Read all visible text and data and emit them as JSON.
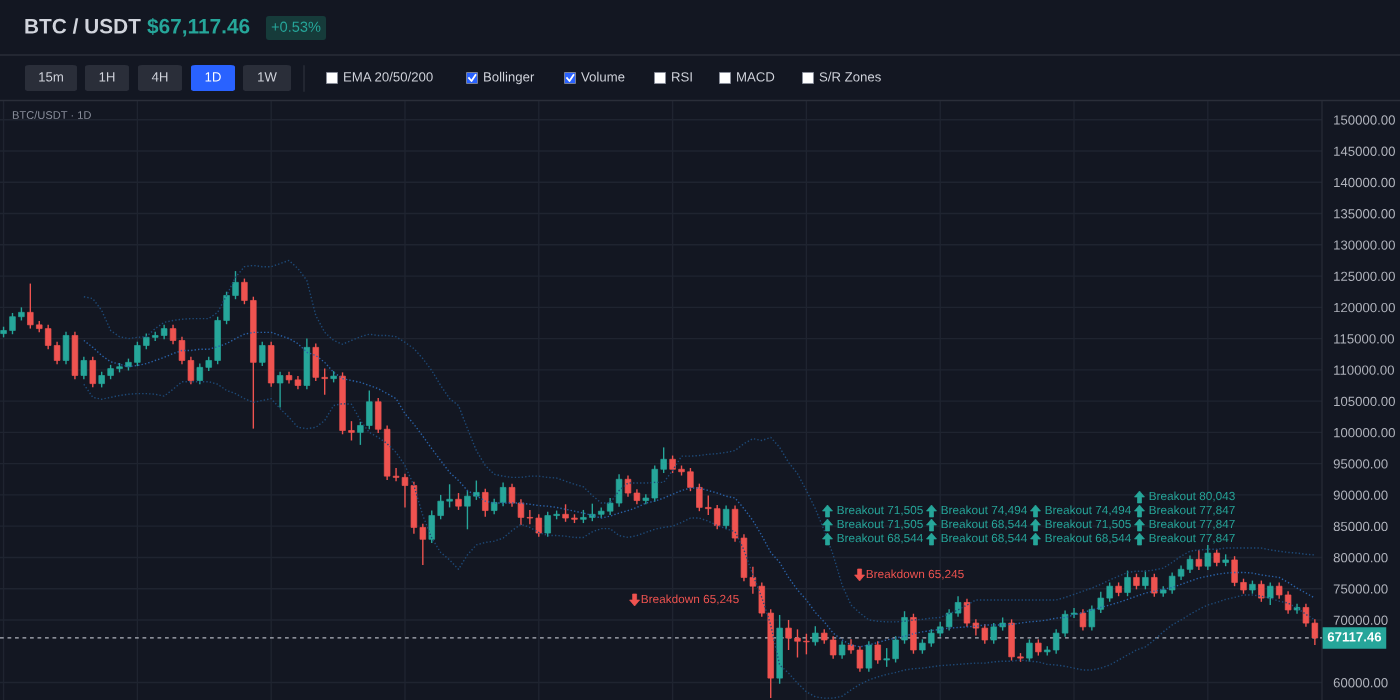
{
  "chart_data": {
    "type": "candlestick",
    "title": "BTC / USDT",
    "subtitle": "$67,117.46",
    "annotations": [
      "+0.53%",
      "15m",
      "1H",
      "4H",
      "1D",
      "1W",
      "EMA 20/50/200",
      "Bollinger",
      "Volume",
      "RSI",
      "MACD",
      "S/R Zones",
      "BTC/USDT · 1D",
      "Breakdown 65,245",
      "Breakdown 65,245",
      "Breakout 68,544",
      "Breakout 68,544",
      "Breakout 71,505",
      "Breakout 68,544",
      "Breakout 71,505",
      "Breakout 74,494",
      "Breakout 68,544",
      "Breakout 71,505",
      "Breakout 74,494",
      "Breakout 77,847",
      "Breakout 77,847",
      "Breakout 77,847",
      "Breakout 80,043"
    ],
    "categories": [
      null,
      null,
      null,
      null,
      null,
      null,
      null,
      null,
      null,
      null,
      null,
      null,
      null,
      null,
      null,
      null,
      null,
      null,
      null,
      null,
      null,
      null,
      null,
      null,
      null,
      null,
      null,
      null,
      null,
      null,
      null,
      null,
      null,
      null,
      null,
      null,
      null,
      null,
      null,
      null,
      null,
      null,
      null,
      null,
      null,
      null,
      null,
      null,
      null,
      null,
      null,
      null,
      null,
      null,
      null,
      null,
      null,
      null,
      null,
      null,
      null,
      null,
      null,
      null,
      null,
      null,
      null,
      null,
      null,
      null,
      null,
      null,
      null,
      null,
      null,
      null,
      null,
      null,
      null,
      null,
      null,
      null,
      null,
      null,
      null,
      null,
      null,
      null,
      null,
      null,
      null,
      null,
      null,
      null,
      null,
      null,
      null,
      null,
      null,
      null,
      null,
      null,
      null,
      null,
      null,
      null,
      null,
      null,
      null,
      null,
      null,
      null,
      null,
      null,
      null,
      null,
      null,
      null,
      null,
      null,
      null,
      null,
      null,
      null,
      null,
      null,
      null,
      null,
      null,
      null,
      null,
      null,
      null,
      null,
      null,
      null,
      null,
      null,
      null,
      null,
      null,
      null,
      null,
      null,
      null,
      null,
      null,
      null
    ],
    "ohlc": [
      [
        115800,
        116900,
        115200,
        116300
      ],
      [
        116300,
        119100,
        115700,
        118500
      ],
      [
        118500,
        120000,
        117900,
        119200
      ],
      [
        119200,
        123800,
        116600,
        117200
      ],
      [
        117200,
        117800,
        116000,
        116600
      ],
      [
        116600,
        117200,
        113300,
        113900
      ],
      [
        113900,
        114500,
        110900,
        111500
      ],
      [
        111500,
        116100,
        110900,
        115500
      ],
      [
        115500,
        116100,
        108500,
        109100
      ],
      [
        109100,
        112100,
        108500,
        111500
      ],
      [
        111500,
        112100,
        107200,
        107800
      ],
      [
        107800,
        109700,
        107200,
        109100
      ],
      [
        109100,
        110800,
        108500,
        110200
      ],
      [
        110200,
        111100,
        109600,
        110500
      ],
      [
        110500,
        111800,
        109900,
        111200
      ],
      [
        111200,
        114500,
        110600,
        113900
      ],
      [
        113900,
        115800,
        113300,
        115200
      ],
      [
        115200,
        116100,
        114600,
        115500
      ],
      [
        115500,
        117200,
        114900,
        116600
      ],
      [
        116600,
        117200,
        114100,
        114700
      ],
      [
        114700,
        115300,
        110900,
        111500
      ],
      [
        111500,
        112100,
        107700,
        108300
      ],
      [
        108300,
        111000,
        107700,
        110400
      ],
      [
        110400,
        112100,
        109800,
        111500
      ],
      [
        111500,
        118500,
        110900,
        117900
      ],
      [
        117900,
        122500,
        117300,
        121900
      ],
      [
        121900,
        125800,
        121300,
        124000
      ],
      [
        124000,
        124600,
        120500,
        121100
      ],
      [
        121100,
        121700,
        100600,
        111200
      ],
      [
        111200,
        114500,
        110600,
        113900
      ],
      [
        113900,
        114500,
        107300,
        107900
      ],
      [
        107900,
        109700,
        104000,
        109100
      ],
      [
        109100,
        109700,
        107800,
        108400
      ],
      [
        108400,
        109000,
        106900,
        107500
      ],
      [
        107500,
        115000,
        106900,
        113600
      ],
      [
        113600,
        114200,
        108200,
        108800
      ],
      [
        108800,
        110200,
        106000,
        108600
      ],
      [
        108600,
        109800,
        108000,
        109000
      ],
      [
        109000,
        109600,
        99700,
        100300
      ],
      [
        100300,
        101800,
        98700,
        100000
      ],
      [
        100000,
        101700,
        98000,
        101100
      ],
      [
        101100,
        106700,
        100500,
        104900
      ],
      [
        104900,
        105500,
        99900,
        100500
      ],
      [
        100500,
        101100,
        92400,
        93000
      ],
      [
        93000,
        94300,
        92200,
        92800
      ],
      [
        92800,
        93400,
        88000,
        91500
      ],
      [
        91500,
        92100,
        83800,
        84800
      ],
      [
        84800,
        85400,
        78800,
        82900
      ],
      [
        82900,
        87500,
        82300,
        86700
      ],
      [
        86700,
        90000,
        86100,
        89000
      ],
      [
        89000,
        91700,
        88000,
        89300
      ],
      [
        89300,
        90300,
        87600,
        88200
      ],
      [
        88200,
        90700,
        84500,
        89800
      ],
      [
        89800,
        92300,
        89200,
        90400
      ],
      [
        90400,
        91000,
        86500,
        87500
      ],
      [
        87500,
        89400,
        86900,
        88800
      ],
      [
        88800,
        92000,
        88200,
        91200
      ],
      [
        91200,
        91800,
        88100,
        88700
      ],
      [
        88700,
        89300,
        85200,
        86400
      ],
      [
        86400,
        87600,
        85300,
        86300
      ],
      [
        86300,
        86900,
        83300,
        83900
      ],
      [
        83900,
        87300,
        83300,
        86700
      ],
      [
        86700,
        87500,
        86100,
        86900
      ],
      [
        86900,
        88500,
        85700,
        86300
      ],
      [
        86300,
        86900,
        85500,
        86100
      ],
      [
        86100,
        87600,
        85500,
        86400
      ],
      [
        86400,
        88600,
        85800,
        86900
      ],
      [
        86900,
        88000,
        86300,
        87400
      ],
      [
        87400,
        89500,
        86800,
        88700
      ],
      [
        88700,
        93300,
        88100,
        92500
      ],
      [
        92500,
        93100,
        89700,
        90300
      ],
      [
        90300,
        90900,
        88500,
        89100
      ],
      [
        89100,
        90100,
        88500,
        89500
      ],
      [
        89500,
        94700,
        88900,
        94100
      ],
      [
        94100,
        97600,
        93500,
        95700
      ],
      [
        95700,
        96300,
        93500,
        94100
      ],
      [
        94100,
        94700,
        93100,
        93700
      ],
      [
        93700,
        94300,
        90600,
        91200
      ],
      [
        91200,
        91800,
        87400,
        88000
      ],
      [
        88000,
        89900,
        86800,
        87800
      ],
      [
        87800,
        88400,
        84500,
        85100
      ],
      [
        85100,
        88300,
        84500,
        87700
      ],
      [
        87700,
        88300,
        82500,
        83100
      ],
      [
        83100,
        83700,
        76200,
        76800
      ],
      [
        76800,
        78500,
        74200,
        75400
      ],
      [
        75400,
        76000,
        70500,
        71100
      ],
      [
        71100,
        71700,
        57500,
        60700
      ],
      [
        60700,
        70800,
        59800,
        68700
      ],
      [
        68700,
        70000,
        65200,
        67100
      ],
      [
        67100,
        68500,
        64000,
        66600
      ],
      [
        66600,
        67800,
        64500,
        66500
      ],
      [
        66500,
        69000,
        65900,
        67900
      ],
      [
        67900,
        68500,
        66200,
        66800
      ],
      [
        66800,
        67400,
        63800,
        64400
      ],
      [
        64400,
        66600,
        63800,
        66000
      ],
      [
        66000,
        66900,
        64600,
        65200
      ],
      [
        65200,
        65800,
        61700,
        62300
      ],
      [
        62300,
        66600,
        61700,
        66000
      ],
      [
        66000,
        66600,
        63000,
        63600
      ],
      [
        63600,
        65500,
        62500,
        63800
      ],
      [
        63800,
        67400,
        63200,
        66800
      ],
      [
        66800,
        71400,
        66200,
        70400
      ],
      [
        70400,
        71000,
        64600,
        65200
      ],
      [
        65200,
        66900,
        64600,
        66300
      ],
      [
        66300,
        68500,
        65700,
        67900
      ],
      [
        67900,
        69700,
        67300,
        68900
      ],
      [
        68900,
        71700,
        68300,
        71100
      ],
      [
        71100,
        73800,
        70500,
        72800
      ],
      [
        72800,
        73400,
        68900,
        69500
      ],
      [
        69500,
        70100,
        67500,
        68700
      ],
      [
        68700,
        69300,
        66200,
        66800
      ],
      [
        66800,
        69500,
        66200,
        68900
      ],
      [
        68900,
        70400,
        68300,
        69500
      ],
      [
        69500,
        70100,
        63500,
        64100
      ],
      [
        64100,
        64700,
        63300,
        63900
      ],
      [
        63900,
        66900,
        63300,
        66300
      ],
      [
        66300,
        66900,
        64300,
        64900
      ],
      [
        64900,
        65800,
        64300,
        65200
      ],
      [
        65200,
        68500,
        64600,
        67900
      ],
      [
        67900,
        71500,
        67300,
        70900
      ],
      [
        70900,
        71900,
        70300,
        71100
      ],
      [
        71100,
        71700,
        68300,
        68900
      ],
      [
        68900,
        72300,
        68300,
        71700
      ],
      [
        71700,
        74500,
        71100,
        73500
      ],
      [
        73500,
        76000,
        72900,
        75400
      ],
      [
        75400,
        76000,
        73800,
        74400
      ],
      [
        74400,
        77900,
        73800,
        76800
      ],
      [
        76800,
        77400,
        74900,
        75500
      ],
      [
        75500,
        77900,
        74900,
        76800
      ],
      [
        76800,
        77400,
        73700,
        74300
      ],
      [
        74300,
        75400,
        73700,
        74800
      ],
      [
        74800,
        77600,
        74200,
        77000
      ],
      [
        77000,
        78700,
        76400,
        78100
      ],
      [
        78100,
        80300,
        77500,
        79700
      ],
      [
        79700,
        81200,
        78000,
        78600
      ],
      [
        78600,
        82000,
        78000,
        80700
      ],
      [
        80700,
        81300,
        78600,
        79200
      ],
      [
        79200,
        80500,
        78600,
        79600
      ],
      [
        79600,
        80200,
        75400,
        76000
      ],
      [
        76000,
        76600,
        74200,
        74800
      ],
      [
        74800,
        76300,
        74200,
        75700
      ],
      [
        75700,
        76300,
        72900,
        73500
      ],
      [
        73500,
        76000,
        72400,
        75400
      ],
      [
        75400,
        76000,
        73400,
        74000
      ],
      [
        74000,
        74600,
        71000,
        71600
      ],
      [
        71600,
        72600,
        71000,
        72000
      ],
      [
        72000,
        72600,
        68900,
        69500
      ],
      [
        69500,
        70100,
        66000,
        67117.46
      ]
    ],
    "colors": [
      "#26a69a",
      "#26a69a",
      "#26a69a",
      "#ef5350",
      "#ef5350",
      "#ef5350",
      "#ef5350",
      "#26a69a",
      "#ef5350",
      "#26a69a",
      "#ef5350",
      "#26a69a",
      "#26a69a",
      "#26a69a",
      "#26a69a",
      "#26a69a",
      "#26a69a",
      "#26a69a",
      "#26a69a",
      "#ef5350",
      "#ef5350",
      "#ef5350",
      "#26a69a",
      "#26a69a",
      "#26a69a",
      "#26a69a",
      "#26a69a",
      "#ef5350",
      "#ef5350",
      "#26a69a",
      "#ef5350",
      "#26a69a",
      "#ef5350",
      "#ef5350",
      "#26a69a",
      "#ef5350",
      "#ef5350",
      "#26a69a",
      "#ef5350",
      "#ef5350",
      "#26a69a",
      "#26a69a",
      "#ef5350",
      "#ef5350",
      "#ef5350",
      "#ef5350",
      "#ef5350",
      "#ef5350",
      "#26a69a",
      "#26a69a",
      "#26a69a",
      "#ef5350",
      "#26a69a",
      "#26a69a",
      "#ef5350",
      "#26a69a",
      "#26a69a",
      "#ef5350",
      "#ef5350",
      "#ef5350",
      "#ef5350",
      "#26a69a",
      "#26a69a",
      "#ef5350",
      "#ef5350",
      "#26a69a",
      "#26a69a",
      "#26a69a",
      "#26a69a",
      "#26a69a",
      "#ef5350",
      "#ef5350",
      "#26a69a",
      "#26a69a",
      "#26a69a",
      "#ef5350",
      "#ef5350",
      "#ef5350",
      "#ef5350",
      "#ef5350",
      "#ef5350",
      "#26a69a",
      "#ef5350",
      "#ef5350",
      "#ef5350",
      "#ef5350",
      "#ef5350",
      "#26a69a",
      "#ef5350",
      "#ef5350",
      "#ef5350",
      "#26a69a",
      "#ef5350",
      "#ef5350",
      "#26a69a",
      "#ef5350",
      "#ef5350",
      "#26a69a",
      "#ef5350",
      "#26a69a",
      "#26a69a",
      "#26a69a",
      "#ef5350",
      "#26a69a",
      "#26a69a",
      "#26a69a",
      "#26a69a",
      "#26a69a",
      "#ef5350",
      "#ef5350",
      "#ef5350",
      "#26a69a",
      "#26a69a",
      "#ef5350",
      "#ef5350",
      "#26a69a",
      "#ef5350",
      "#26a69a",
      "#26a69a",
      "#26a69a",
      "#26a69a",
      "#ef5350",
      "#26a69a",
      "#26a69a",
      "#26a69a",
      "#ef5350",
      "#26a69a",
      "#ef5350",
      "#26a69a",
      "#ef5350",
      "#26a69a",
      "#26a69a",
      "#26a69a",
      "#26a69a",
      "#ef5350",
      "#26a69a",
      "#ef5350",
      "#26a69a",
      "#ef5350",
      "#ef5350",
      "#26a69a",
      "#ef5350",
      "#26a69a",
      "#ef5350",
      "#ef5350",
      "#26a69a",
      "#ef5350",
      "#ef5350"
    ],
    "series": [
      {
        "type": "line",
        "color": "#1e4a78",
        "line_style": "dotted",
        "values": [
          null,
          null,
          null,
          null,
          null,
          null,
          null,
          null,
          null,
          121700,
          121400,
          119500,
          116300,
          115300,
          115000,
          115200,
          115300,
          116600,
          117600,
          117900,
          118100,
          118200,
          118200,
          118200,
          119200,
          121900,
          124800,
          126500,
          126700,
          126500,
          126500,
          127000,
          127500,
          126200,
          124300,
          118700,
          116000,
          114700,
          114100,
          114700,
          115300,
          115700,
          115500,
          115500,
          115300,
          114400,
          113400,
          111800,
          109900,
          107500,
          105400,
          104300,
          100600,
          97100,
          94700,
          93300,
          93000,
          92800,
          92800,
          93000,
          93000,
          92800,
          92700,
          92200,
          91700,
          91300,
          89900,
          88700,
          88700,
          90700,
          91900,
          91900,
          91900,
          92000,
          92000,
          93900,
          96200,
          96200,
          96300,
          96500,
          96600,
          96800,
          97100,
          98200,
          99000,
          98700,
          99200,
          97600,
          95200,
          93400,
          90700,
          87800,
          84300,
          80400,
          75600,
          72400,
          71100,
          70000,
          69800,
          69700,
          69700,
          69800,
          70000,
          70100,
          70300,
          70400,
          71000,
          71600,
          72400,
          73200,
          73200,
          73200,
          73200,
          73200,
          73200,
          73200,
          73200,
          73200,
          73200,
          73600,
          74100,
          74600,
          75100,
          75700,
          76400,
          77000,
          77600,
          77800,
          77800,
          78000,
          78300,
          79200,
          80200,
          81000,
          81200,
          81300,
          81300,
          81500,
          81500,
          81500,
          81500,
          81500,
          81200,
          81000,
          80800,
          80700,
          80500,
          80400
        ]
      },
      {
        "type": "line",
        "color": "#2a62a8",
        "line_style": "dotted",
        "values": [
          null,
          null,
          null,
          null,
          null,
          null,
          null,
          null,
          null,
          114700,
          113600,
          112300,
          111300,
          110900,
          110500,
          110700,
          111000,
          111500,
          112000,
          112600,
          113100,
          113100,
          113300,
          113300,
          113700,
          114200,
          115000,
          115700,
          116000,
          116000,
          116000,
          115500,
          115000,
          114200,
          112800,
          112300,
          111200,
          109600,
          108600,
          108300,
          108000,
          107500,
          107000,
          106200,
          105400,
          103000,
          101300,
          99400,
          97400,
          95500,
          93600,
          92300,
          90700,
          89900,
          89000,
          88700,
          88700,
          88700,
          88700,
          88500,
          88300,
          88200,
          88000,
          87700,
          87400,
          87100,
          86700,
          86300,
          86600,
          87100,
          87500,
          88000,
          88700,
          89000,
          89500,
          90100,
          90700,
          91100,
          91100,
          90700,
          90300,
          89800,
          89500,
          87800,
          85900,
          83500,
          80800,
          79200,
          76800,
          74800,
          73200,
          71200,
          69700,
          67900,
          66800,
          66000,
          65700,
          66000,
          66400,
          66800,
          67100,
          67400,
          67800,
          68100,
          68300,
          68500,
          68700,
          68800,
          68900,
          69000,
          69200,
          69200,
          69200,
          69300,
          69500,
          69700,
          69800,
          70000,
          70300,
          70400,
          70800,
          71200,
          71600,
          72000,
          72400,
          72800,
          73300,
          73800,
          74300,
          74600,
          74900,
          75200,
          75700,
          76200,
          76700,
          77000,
          77300,
          77500,
          77600,
          77600,
          77500,
          77200,
          77000,
          76800,
          76000,
          75100,
          74300,
          73500
        ]
      },
      {
        "type": "line",
        "color": "#1e4a78",
        "line_style": "dotted",
        "values": [
          null,
          null,
          null,
          null,
          null,
          null,
          null,
          null,
          null,
          107700,
          105600,
          105300,
          105600,
          105900,
          106100,
          106200,
          106200,
          106100,
          105800,
          106900,
          108100,
          108100,
          108100,
          108100,
          107700,
          106700,
          106200,
          105400,
          104800,
          105100,
          105400,
          103800,
          102400,
          100800,
          100600,
          100800,
          101900,
          104300,
          104600,
          104500,
          101900,
          100000,
          99200,
          98200,
          96800,
          94700,
          91500,
          86700,
          83100,
          80800,
          79600,
          78100,
          80400,
          82000,
          82400,
          82600,
          83100,
          84300,
          85300,
          84800,
          84000,
          83500,
          83500,
          83400,
          83200,
          83200,
          84100,
          84600,
          84600,
          83500,
          83200,
          83500,
          84000,
          84500,
          84800,
          85000,
          85600,
          86300,
          86300,
          85800,
          85100,
          84600,
          84100,
          81200,
          77200,
          73600,
          69200,
          62800,
          61500,
          59900,
          58500,
          57700,
          57500,
          57500,
          57800,
          58800,
          59700,
          60400,
          60900,
          61300,
          61600,
          62000,
          62200,
          62300,
          62500,
          62700,
          62800,
          62900,
          63000,
          63100,
          63100,
          63300,
          63400,
          63400,
          63600,
          63400,
          63300,
          62900,
          62800,
          62600,
          62300,
          62000,
          62000,
          62300,
          62800,
          63600,
          64400,
          65200,
          65700,
          66800,
          68100,
          69200,
          70000,
          70900,
          71700,
          72400,
          72800,
          73300,
          73600,
          74000,
          74000,
          73800,
          73500,
          73000,
          72700,
          71900,
          70900,
          70000
        ]
      }
    ],
    "ylim": [
      57200,
      153000
    ],
    "yticks": [
      {
        "value": 60000,
        "label": "60000.00"
      },
      {
        "value": 70000,
        "label": "70000.00"
      },
      {
        "value": 75000,
        "label": "75000.00"
      },
      {
        "value": 80000,
        "label": "80000.00"
      },
      {
        "value": 85000,
        "label": "85000.00"
      },
      {
        "value": 90000,
        "label": "90000.00"
      },
      {
        "value": 95000,
        "label": "95000.00"
      },
      {
        "value": 100000,
        "label": "100000.00"
      },
      {
        "value": 105000,
        "label": "105000.00"
      },
      {
        "value": 110000,
        "label": "110000.00"
      },
      {
        "value": 115000,
        "label": "115000.00"
      },
      {
        "value": 120000,
        "label": "120000.00"
      },
      {
        "value": 125000,
        "label": "125000.00"
      },
      {
        "value": 130000,
        "label": "130000.00"
      },
      {
        "value": 135000,
        "label": "135000.00"
      },
      {
        "value": 140000,
        "label": "140000.00"
      },
      {
        "value": 145000,
        "label": "145000.00"
      },
      {
        "value": 150000,
        "label": "150000.00"
      }
    ],
    "grid": true,
    "tick_labels": "y",
    "ref_lines": [
      {
        "axis": "y",
        "value": 67117.46,
        "label": "67117.46",
        "color": "#b2b5be",
        "line_style": "dashed"
      }
    ]
  }
}
